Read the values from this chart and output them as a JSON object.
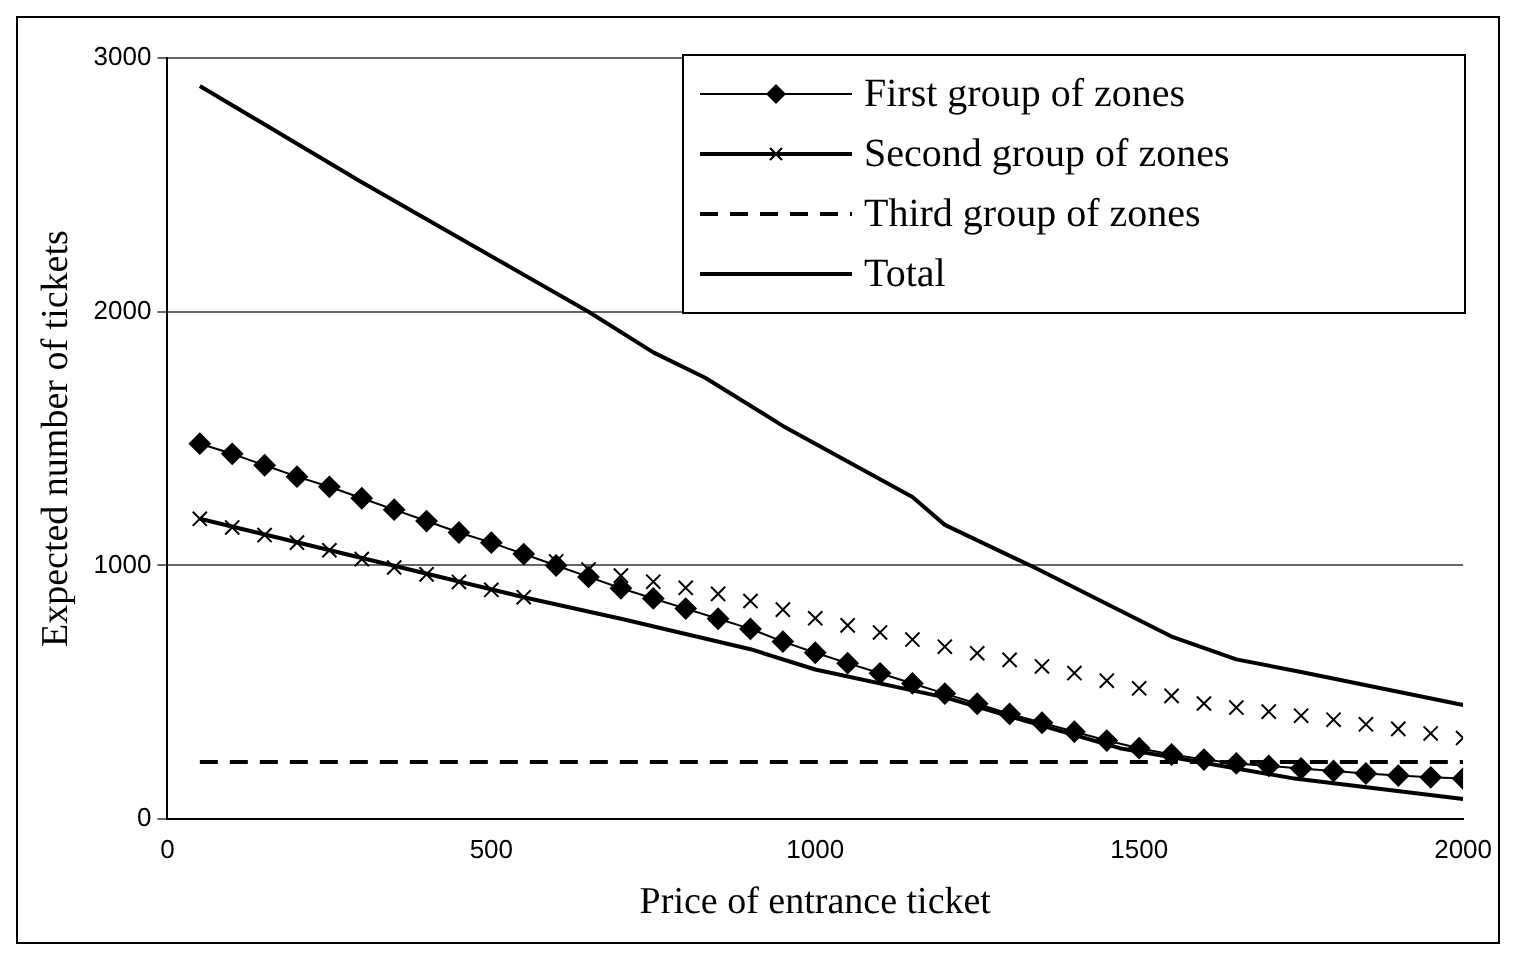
{
  "chart_data": {
    "type": "line",
    "xlabel": "Price of entrance ticket",
    "ylabel": "Expected number of tickets",
    "xlim": [
      0,
      2000
    ],
    "xticks": [
      0,
      500,
      1000,
      1500,
      2000
    ],
    "ylim": [
      0,
      3000
    ],
    "yticks": [
      0,
      1000,
      2000,
      3000
    ],
    "grid": "y",
    "legend": "top right",
    "series": [
      {
        "name": "First group of zones",
        "color": "#000000",
        "type": "line",
        "marker": "diamond",
        "line_style": "solid",
        "x": [
          50,
          100,
          150,
          200,
          250,
          300,
          350,
          400,
          450,
          500,
          550,
          600,
          650,
          700,
          750,
          800,
          850,
          900,
          950,
          1000,
          1050,
          1100,
          1150,
          1200,
          1250,
          1300,
          1350,
          1400,
          1450,
          1500,
          1550,
          1600,
          1650,
          1700,
          1750,
          1800,
          1850,
          1900,
          1950,
          2000
        ],
        "values": [
          1480,
          1440,
          1395,
          1350,
          1310,
          1265,
          1220,
          1175,
          1130,
          1090,
          1045,
          1000,
          955,
          910,
          870,
          830,
          790,
          750,
          700,
          656,
          615,
          575,
          535,
          495,
          455,
          415,
          380,
          345,
          310,
          280,
          255,
          235,
          220,
          210,
          200,
          190,
          180,
          172,
          165,
          160
        ]
      },
      {
        "name": "Second group of zones",
        "color": "#000000",
        "type": "scatter",
        "marker": "cross",
        "x": [
          50,
          100,
          150,
          200,
          250,
          300,
          350,
          400,
          450,
          500,
          550,
          600,
          650,
          700,
          750,
          800,
          850,
          900,
          950,
          1000,
          1050,
          1100,
          1150,
          1200,
          1250,
          1300,
          1350,
          1400,
          1450,
          1500,
          1550,
          1600,
          1650,
          1700,
          1750,
          1800,
          1850,
          1900,
          1950,
          2000
        ],
        "values": [
          1184,
          1150,
          1120,
          1090,
          1060,
          1025,
          992,
          965,
          935,
          904,
          875,
          1016,
          984,
          960,
          936,
          912,
          888,
          860,
          826,
          792,
          764,
          736,
          708,
          680,
          654,
          628,
          602,
          576,
          546,
          516,
          486,
          456,
          440,
          424,
          408,
          392,
          374,
          356,
          338,
          320
        ]
      },
      {
        "name": "Third group of zones",
        "color": "#000000",
        "type": "line",
        "marker": "none",
        "line_style": "dashed",
        "x": [
          50,
          2000
        ],
        "values": [
          225,
          225
        ]
      },
      {
        "name": "Total",
        "color": "#000000",
        "type": "line",
        "marker": "none",
        "line_style": "solid",
        "x": [
          50,
          300,
          650,
          750,
          830,
          950,
          1150,
          1200,
          1340,
          1550,
          1650,
          1750,
          2000
        ],
        "values": [
          2890,
          2510,
          2000,
          1840,
          1740,
          1550,
          1270,
          1160,
          990,
          720,
          630,
          580,
          450
        ]
      },
      {
        "color": "#000000",
        "type": "line",
        "marker": "none",
        "line_style": "solid",
        "x": [
          50,
          550,
          700,
          900,
          1000,
          1200,
          1470,
          1740,
          2000
        ],
        "values": [
          1184,
          875,
          790,
          670,
          590,
          480,
          280,
          160,
          80
        ]
      }
    ]
  }
}
